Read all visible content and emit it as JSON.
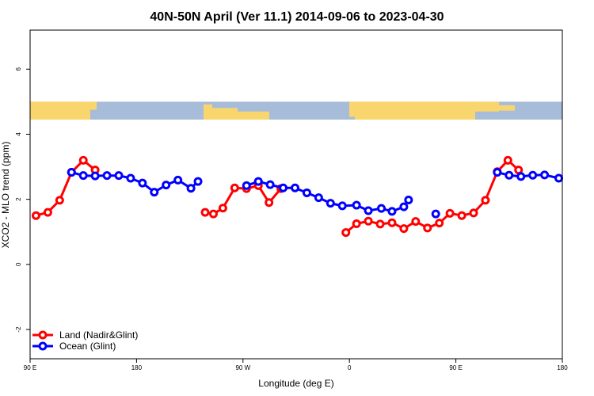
{
  "chart_data": {
    "type": "line",
    "title": "40N-50N April (Ver 11.1)   2014-09-06 to 2023-04-30",
    "xlabel": "Longitude (deg E)",
    "ylabel": "XCO2 - MLO trend (ppm)",
    "xlim": [
      90,
      540
    ],
    "ylim": [
      -2.9,
      7.2
    ],
    "x_ticks": [
      {
        "value": 90,
        "label": "90 E"
      },
      {
        "value": 180,
        "label": "180"
      },
      {
        "value": 270,
        "label": "90 W"
      },
      {
        "value": 360,
        "label": "0"
      },
      {
        "value": 450,
        "label": "90 E"
      },
      {
        "value": 540,
        "label": "180"
      }
    ],
    "y_ticks": [
      {
        "value": -2,
        "label": "-2"
      },
      {
        "value": 0,
        "label": "0"
      },
      {
        "value": 2,
        "label": "2"
      },
      {
        "value": 4,
        "label": "4"
      },
      {
        "value": 6,
        "label": "6"
      }
    ],
    "map_strip": {
      "y_range": [
        4.45,
        5.0
      ],
      "land_color": "#f9d56e",
      "ocean_color": "#a7bcd9"
    },
    "legend_position": "bottom-left",
    "series": [
      {
        "name": "Land (Nadir&Glint)",
        "color": "#ff0000",
        "segments": [
          [
            [
              95,
              1.5
            ],
            [
              105,
              1.6
            ],
            [
              115,
              1.97
            ],
            [
              125,
              2.83
            ],
            [
              135,
              3.2
            ],
            [
              145,
              2.9
            ]
          ],
          [
            [
              238,
              1.6
            ],
            [
              245,
              1.55
            ],
            [
              253,
              1.73
            ],
            [
              263,
              2.35
            ],
            [
              273,
              2.33
            ],
            [
              283,
              2.42
            ],
            [
              292,
              1.9
            ],
            [
              302,
              2.33
            ]
          ],
          [
            [
              357,
              0.98
            ],
            [
              366,
              1.25
            ],
            [
              376,
              1.33
            ],
            [
              386,
              1.24
            ],
            [
              396,
              1.28
            ],
            [
              406,
              1.1
            ],
            [
              416,
              1.32
            ],
            [
              426,
              1.12
            ],
            [
              436,
              1.27
            ],
            [
              445,
              1.57
            ],
            [
              455,
              1.5
            ],
            [
              465,
              1.58
            ],
            [
              475,
              1.97
            ],
            [
              485,
              2.85
            ],
            [
              494,
              3.2
            ],
            [
              503,
              2.9
            ]
          ]
        ]
      },
      {
        "name": "Ocean (Glint)",
        "color": "#0000ff",
        "segments": [
          [
            [
              125,
              2.83
            ],
            [
              135,
              2.73
            ],
            [
              145,
              2.72
            ],
            [
              155,
              2.73
            ],
            [
              165,
              2.73
            ],
            [
              175,
              2.65
            ],
            [
              185,
              2.5
            ],
            [
              195,
              2.22
            ],
            [
              205,
              2.44
            ],
            [
              215,
              2.59
            ],
            [
              226,
              2.34
            ],
            [
              232,
              2.55
            ]
          ],
          [
            [
              273,
              2.42
            ],
            [
              283,
              2.55
            ],
            [
              293,
              2.45
            ],
            [
              304,
              2.35
            ],
            [
              314,
              2.35
            ],
            [
              324,
              2.2
            ],
            [
              334,
              2.05
            ],
            [
              344,
              1.88
            ],
            [
              354,
              1.8
            ],
            [
              366,
              1.82
            ],
            [
              376,
              1.65
            ],
            [
              387,
              1.72
            ],
            [
              396,
              1.63
            ],
            [
              406,
              1.77
            ],
            [
              410,
              1.98
            ]
          ],
          [
            [
              433,
              1.55
            ]
          ],
          [
            [
              485,
              2.83
            ],
            [
              495,
              2.74
            ],
            [
              505,
              2.7
            ],
            [
              515,
              2.74
            ],
            [
              525,
              2.75
            ],
            [
              537,
              2.65
            ]
          ]
        ]
      }
    ]
  }
}
